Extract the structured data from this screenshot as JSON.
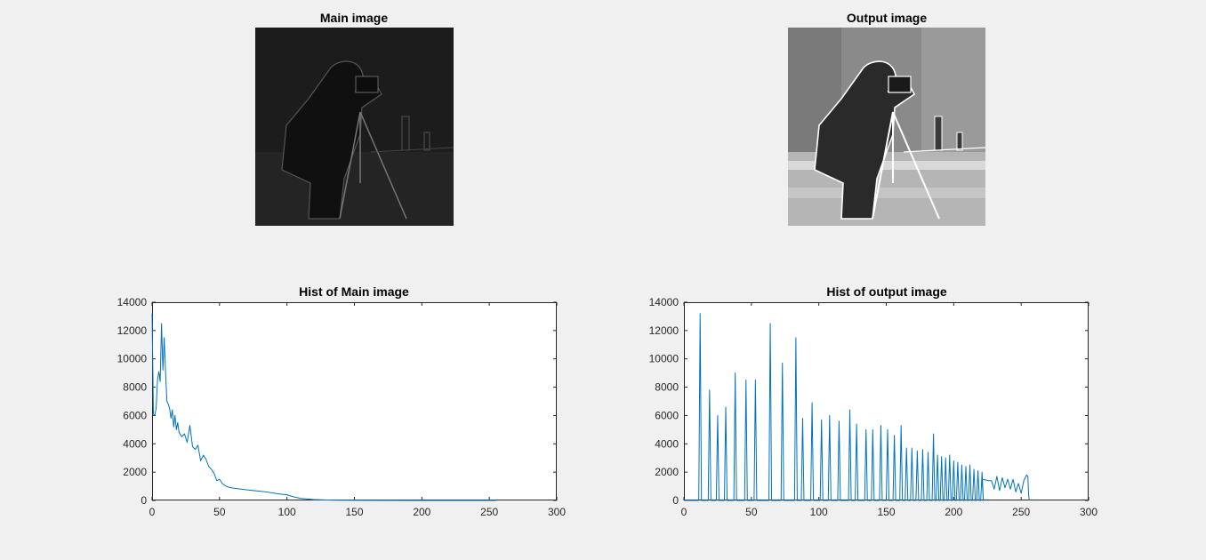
{
  "images": [
    {
      "title": "Main image",
      "brightness": "dark"
    },
    {
      "title": "Output image",
      "brightness": "equalized"
    }
  ],
  "chart_data": [
    {
      "type": "line",
      "title": "Hist of Main image",
      "xlabel": "",
      "ylabel": "",
      "xlim": [
        0,
        300
      ],
      "ylim": [
        0,
        14000
      ],
      "xticks": [
        0,
        50,
        100,
        150,
        200,
        250,
        300
      ],
      "yticks": [
        0,
        2000,
        4000,
        6000,
        8000,
        10000,
        12000,
        14000
      ],
      "grid": false,
      "line_color": "#0072bd",
      "series": [
        {
          "x": [
            0,
            1,
            2,
            3,
            4,
            5,
            6,
            7,
            8,
            9,
            10,
            11,
            12,
            13,
            14,
            15,
            16,
            17,
            18,
            19,
            20,
            22,
            24,
            26,
            28,
            30,
            32,
            34,
            36,
            38,
            40,
            42,
            44,
            46,
            48,
            50,
            52,
            55,
            58,
            62,
            66,
            70,
            75,
            80,
            85,
            90,
            95,
            100,
            105,
            110,
            115,
            120,
            130,
            140,
            160,
            200,
            255
          ],
          "y": [
            13200,
            6100,
            6000,
            6500,
            8500,
            9100,
            8400,
            12500,
            9200,
            11500,
            9000,
            7000,
            6800,
            6500,
            5800,
            6400,
            5200,
            6000,
            5000,
            5500,
            4800,
            4500,
            4700,
            4100,
            5300,
            3800,
            3600,
            3900,
            2800,
            3200,
            2900,
            2400,
            2200,
            1900,
            1400,
            1500,
            1200,
            1000,
            900,
            850,
            800,
            750,
            700,
            650,
            600,
            520,
            450,
            400,
            250,
            150,
            100,
            60,
            30,
            15,
            8,
            4,
            2
          ]
        }
      ]
    },
    {
      "type": "line",
      "title": "Hist of output image",
      "xlabel": "",
      "ylabel": "",
      "xlim": [
        0,
        300
      ],
      "ylim": [
        0,
        14000
      ],
      "xticks": [
        0,
        50,
        100,
        150,
        200,
        250,
        300
      ],
      "yticks": [
        0,
        2000,
        4000,
        6000,
        8000,
        10000,
        12000,
        14000
      ],
      "grid": false,
      "line_color": "#0072bd",
      "peaks": [
        [
          12,
          13200
        ],
        [
          19,
          7800
        ],
        [
          25,
          6000
        ],
        [
          31,
          6600
        ],
        [
          38,
          9000
        ],
        [
          46,
          8500
        ],
        [
          53,
          8500
        ],
        [
          64,
          12500
        ],
        [
          73,
          9700
        ],
        [
          83,
          11500
        ],
        [
          88,
          5800
        ],
        [
          95,
          6900
        ],
        [
          102,
          5700
        ],
        [
          108,
          6000
        ],
        [
          115,
          5600
        ],
        [
          123,
          6400
        ],
        [
          128,
          5400
        ],
        [
          135,
          5000
        ],
        [
          140,
          5000
        ],
        [
          146,
          5300
        ],
        [
          151,
          5000
        ],
        [
          156,
          4600
        ],
        [
          161,
          5300
        ],
        [
          165,
          3700
        ],
        [
          169,
          3700
        ],
        [
          173,
          3500
        ],
        [
          177,
          3600
        ],
        [
          181,
          3400
        ],
        [
          185,
          4700
        ],
        [
          188,
          3200
        ],
        [
          191,
          3100
        ],
        [
          194,
          3000
        ],
        [
          197,
          3200
        ],
        [
          200,
          2800
        ],
        [
          203,
          2700
        ],
        [
          206,
          2500
        ],
        [
          209,
          2400
        ],
        [
          212,
          2500
        ],
        [
          215,
          2200
        ],
        [
          218,
          2100
        ],
        [
          221,
          2000
        ]
      ],
      "tail": {
        "x": [
          221,
          226,
          228,
          230,
          232,
          234,
          236,
          238,
          240,
          242,
          244,
          246,
          248,
          250,
          252,
          254,
          255,
          255.5,
          256
        ],
        "y": [
          1500,
          1400,
          1400,
          800,
          1700,
          700,
          1600,
          900,
          1500,
          800,
          1500,
          600,
          1200,
          500,
          1400,
          1800,
          1700,
          400,
          0
        ]
      }
    }
  ]
}
